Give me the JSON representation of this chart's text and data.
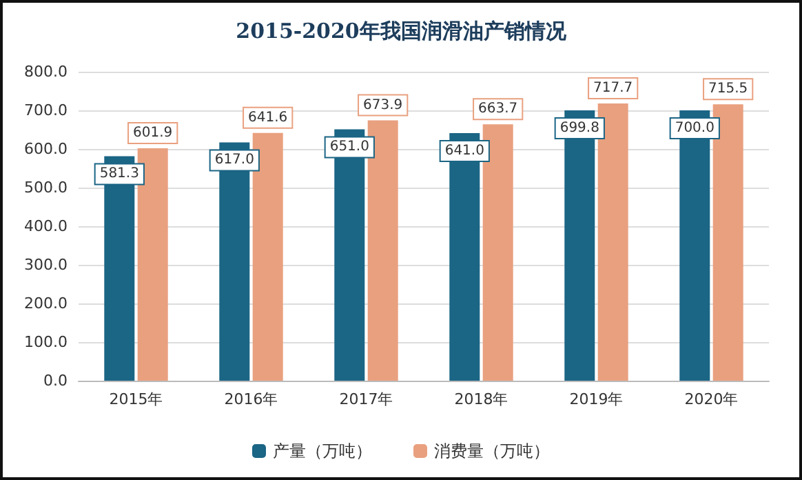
{
  "chart_data": {
    "type": "bar",
    "title": "2015-2020年我国润滑油产销情况",
    "categories": [
      "2015年",
      "2016年",
      "2017年",
      "2018年",
      "2019年",
      "2020年"
    ],
    "series": [
      {
        "name": "产量（万吨）",
        "color": "#1b6585",
        "values": [
          581.3,
          617.0,
          651.0,
          641.0,
          699.8,
          700.0
        ],
        "value_labels": [
          "581.3",
          "617.0",
          "651.0",
          "641.0",
          "699.8",
          "700.0"
        ]
      },
      {
        "name": "消费量（万吨）",
        "color": "#e9a07f",
        "values": [
          601.9,
          641.6,
          673.9,
          663.7,
          717.7,
          715.5
        ],
        "value_labels": [
          "601.9",
          "641.6",
          "673.9",
          "663.7",
          "717.7",
          "715.5"
        ]
      }
    ],
    "ylim": [
      0,
      800
    ],
    "yticks": [
      {
        "value": 0,
        "label": "0.0"
      },
      {
        "value": 100,
        "label": "100.0"
      },
      {
        "value": 200,
        "label": "200.0"
      },
      {
        "value": 300,
        "label": "300.0"
      },
      {
        "value": 400,
        "label": "400.0"
      },
      {
        "value": 500,
        "label": "500.0"
      },
      {
        "value": 600,
        "label": "600.0"
      },
      {
        "value": 700,
        "label": "700.0"
      },
      {
        "value": 800,
        "label": "800.0"
      }
    ],
    "grid": "y",
    "legend": "bottom"
  }
}
